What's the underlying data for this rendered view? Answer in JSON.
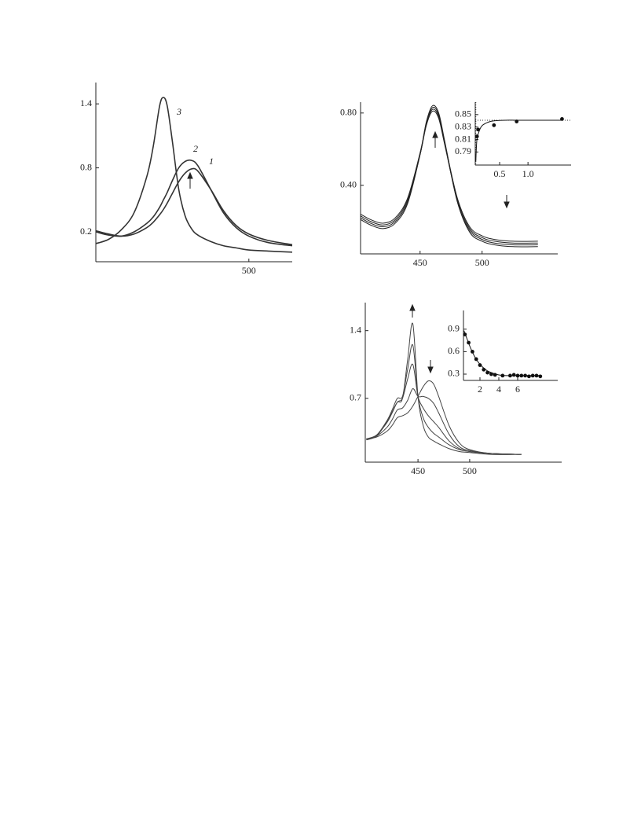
{
  "chart_data": [
    {
      "type": "line",
      "annotations": [
        "3",
        "2",
        "1"
      ],
      "xlim": [
        380,
        534
      ],
      "ylim": [
        -0.08,
        1.6
      ],
      "xticks": [
        500
      ],
      "yticks": [
        1.4,
        0.8,
        0.2
      ],
      "series": [
        {
          "name": "3",
          "color": "#333333",
          "style": "line",
          "x": [
            380,
            390,
            400,
            410,
            420,
            425,
            430,
            433,
            436,
            440,
            445,
            450,
            455,
            460,
            470,
            480,
            490,
            500,
            515,
            534
          ],
          "values": [
            0.09,
            0.13,
            0.22,
            0.38,
            0.72,
            1.0,
            1.38,
            1.46,
            1.38,
            1.05,
            0.6,
            0.35,
            0.23,
            0.17,
            0.11,
            0.07,
            0.05,
            0.03,
            0.02,
            0.01
          ]
        },
        {
          "name": "2",
          "color": "#333333",
          "style": "line",
          "x": [
            380,
            390,
            400,
            410,
            420,
            425,
            430,
            433,
            436,
            440,
            445,
            450,
            455,
            460,
            470,
            480,
            490,
            500,
            515,
            534
          ],
          "values": [
            0.2,
            0.17,
            0.16,
            0.2,
            0.28,
            0.34,
            0.43,
            0.5,
            0.57,
            0.68,
            0.8,
            0.86,
            0.87,
            0.82,
            0.6,
            0.38,
            0.24,
            0.16,
            0.1,
            0.07
          ]
        },
        {
          "name": "1",
          "color": "#333333",
          "style": "line",
          "x": [
            380,
            390,
            400,
            410,
            420,
            425,
            430,
            433,
            436,
            440,
            445,
            450,
            455,
            460,
            470,
            480,
            490,
            500,
            515,
            534
          ],
          "values": [
            0.21,
            0.18,
            0.16,
            0.18,
            0.24,
            0.29,
            0.36,
            0.41,
            0.47,
            0.56,
            0.67,
            0.75,
            0.79,
            0.77,
            0.6,
            0.4,
            0.26,
            0.18,
            0.12,
            0.08
          ]
        }
      ]
    },
    {
      "type": "line",
      "xlim": [
        402,
        561
      ],
      "ylim": [
        0.02,
        0.86
      ],
      "xticks": [
        450,
        500
      ],
      "yticks": [
        {
          "value": 0.8,
          "label": "0.80"
        },
        {
          "value": 0.4,
          "label": "0.40"
        }
      ],
      "series": [
        {
          "color": "#222222",
          "style": "line",
          "x": [
            402,
            410,
            420,
            430,
            440,
            450,
            455,
            460,
            465,
            470,
            480,
            490,
            500,
            510,
            525,
            545
          ],
          "values": [
            0.24,
            0.21,
            0.19,
            0.22,
            0.33,
            0.58,
            0.74,
            0.82,
            0.78,
            0.63,
            0.33,
            0.17,
            0.12,
            0.1,
            0.09,
            0.09
          ]
        },
        {
          "color": "#222222",
          "style": "line",
          "x": [
            402,
            410,
            420,
            430,
            440,
            450,
            455,
            460,
            465,
            470,
            480,
            490,
            500,
            510,
            525,
            545
          ],
          "values": [
            0.23,
            0.2,
            0.18,
            0.21,
            0.32,
            0.57,
            0.73,
            0.81,
            0.77,
            0.62,
            0.32,
            0.16,
            0.11,
            0.09,
            0.08,
            0.08
          ]
        },
        {
          "color": "#222222",
          "style": "line",
          "x": [
            402,
            410,
            420,
            430,
            440,
            450,
            455,
            460,
            465,
            470,
            480,
            490,
            500,
            510,
            525,
            545
          ],
          "values": [
            0.22,
            0.19,
            0.17,
            0.2,
            0.31,
            0.57,
            0.74,
            0.83,
            0.79,
            0.63,
            0.31,
            0.15,
            0.1,
            0.08,
            0.07,
            0.07
          ]
        },
        {
          "color": "#222222",
          "style": "line",
          "x": [
            402,
            410,
            420,
            430,
            440,
            450,
            455,
            460,
            465,
            470,
            480,
            490,
            500,
            510,
            525,
            545
          ],
          "values": [
            0.21,
            0.18,
            0.16,
            0.19,
            0.3,
            0.57,
            0.75,
            0.84,
            0.8,
            0.64,
            0.31,
            0.14,
            0.09,
            0.07,
            0.06,
            0.06
          ]
        }
      ]
    },
    {
      "type": "line",
      "xlim": [
        0.07,
        1.76
      ],
      "ylim": [
        0.769,
        0.87
      ],
      "xticks": [
        0.5,
        {
          "value": 1,
          "label": "1.0"
        }
      ],
      "yticks": [
        0.85,
        0.83,
        0.81,
        0.79
      ],
      "reference_y": 0.841,
      "reference_x": 0.08,
      "series": [
        {
          "color": "#111111",
          "style": "points",
          "x": [
            0.1,
            0.12,
            0.4,
            0.8,
            1.6
          ],
          "values": [
            0.815,
            0.826,
            0.833,
            0.839,
            0.843
          ]
        },
        {
          "color": "#111111",
          "style": "line",
          "x": [
            0.08,
            0.1,
            0.15,
            0.2,
            0.3,
            0.4,
            0.6,
            0.8,
            1.2,
            1.6
          ],
          "values": [
            0.775,
            0.81,
            0.826,
            0.833,
            0.838,
            0.84,
            0.841,
            0.841,
            0.841,
            0.841
          ]
        }
      ]
    },
    {
      "type": "line",
      "xlim": [
        399,
        589
      ],
      "ylim": [
        0.04,
        1.69
      ],
      "xticks": [
        450,
        500
      ],
      "yticks": [
        1.4,
        0.7
      ],
      "series": [
        {
          "color": "#444444",
          "style": "line",
          "x": [
            400,
            410,
            420,
            425,
            430,
            435,
            440,
            445,
            450,
            455,
            460,
            465,
            470,
            480,
            490,
            500,
            520,
            550
          ],
          "values": [
            0.28,
            0.3,
            0.36,
            0.42,
            0.5,
            0.52,
            0.55,
            0.62,
            0.72,
            0.82,
            0.88,
            0.85,
            0.72,
            0.42,
            0.24,
            0.17,
            0.13,
            0.12
          ]
        },
        {
          "color": "#444444",
          "style": "line",
          "x": [
            400,
            410,
            420,
            425,
            430,
            435,
            440,
            445,
            450,
            455,
            460,
            465,
            470,
            480,
            490,
            500,
            520,
            550
          ],
          "values": [
            0.28,
            0.31,
            0.4,
            0.48,
            0.58,
            0.6,
            0.68,
            0.8,
            0.72,
            0.72,
            0.7,
            0.65,
            0.55,
            0.33,
            0.2,
            0.16,
            0.13,
            0.12
          ]
        },
        {
          "color": "#444444",
          "style": "line",
          "x": [
            400,
            410,
            420,
            425,
            430,
            435,
            440,
            445,
            450,
            455,
            460,
            465,
            470,
            480,
            490,
            500,
            520,
            550
          ],
          "values": [
            0.28,
            0.32,
            0.45,
            0.55,
            0.66,
            0.7,
            0.9,
            1.05,
            0.72,
            0.6,
            0.52,
            0.46,
            0.4,
            0.26,
            0.18,
            0.15,
            0.13,
            0.12
          ]
        },
        {
          "color": "#444444",
          "style": "line",
          "x": [
            400,
            410,
            420,
            425,
            430,
            435,
            440,
            445,
            450,
            455,
            460,
            465,
            470,
            480,
            490,
            500,
            520,
            550
          ],
          "values": [
            0.28,
            0.32,
            0.47,
            0.58,
            0.7,
            0.72,
            1.0,
            1.25,
            0.72,
            0.5,
            0.4,
            0.34,
            0.3,
            0.22,
            0.17,
            0.15,
            0.13,
            0.12
          ]
        },
        {
          "color": "#444444",
          "style": "line",
          "x": [
            400,
            410,
            420,
            425,
            430,
            435,
            440,
            445,
            450,
            455,
            460,
            465,
            470,
            480,
            490,
            500,
            520,
            550
          ],
          "values": [
            0.27,
            0.31,
            0.46,
            0.56,
            0.66,
            0.7,
            1.1,
            1.47,
            0.72,
            0.42,
            0.3,
            0.26,
            0.23,
            0.18,
            0.15,
            0.14,
            0.12,
            0.12
          ]
        }
      ]
    },
    {
      "type": "line",
      "xlim": [
        0.25,
        10.25
      ],
      "ylim": [
        0.216,
        1.15
      ],
      "xticks": [
        2,
        4,
        6
      ],
      "yticks": [
        0.9,
        0.6,
        0.3
      ],
      "series": [
        {
          "color": "#111111",
          "style": "points",
          "x": [
            0.4,
            0.8,
            1.2,
            1.6,
            2.0,
            2.4,
            2.8,
            3.2,
            3.6,
            4.4,
            5.2,
            5.6,
            6.0,
            6.4,
            6.8,
            7.2,
            7.6,
            8.0,
            8.4
          ],
          "values": [
            0.83,
            0.72,
            0.6,
            0.5,
            0.42,
            0.36,
            0.32,
            0.3,
            0.29,
            0.28,
            0.28,
            0.29,
            0.28,
            0.28,
            0.28,
            0.27,
            0.28,
            0.28,
            0.27
          ]
        },
        {
          "color": "#111111",
          "style": "line",
          "x": [
            0.3,
            0.6,
            1,
            1.5,
            2,
            2.5,
            3,
            4,
            5,
            6,
            7,
            8.5
          ],
          "values": [
            0.88,
            0.78,
            0.65,
            0.52,
            0.43,
            0.37,
            0.33,
            0.29,
            0.28,
            0.28,
            0.28,
            0.28
          ]
        }
      ]
    }
  ]
}
